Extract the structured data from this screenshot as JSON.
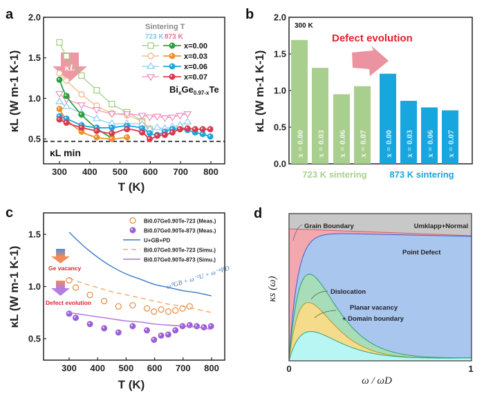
{
  "chart_data": [
    {
      "panel": "a",
      "type": "line",
      "xlabel": "T (K)",
      "ylabel": "κL (W m-1 K-1)",
      "xlim": [
        250,
        850
      ],
      "ylim": [
        0.2,
        2.0
      ],
      "xticks": [
        "300",
        "400",
        "500",
        "600",
        "700",
        "800"
      ],
      "yticks": [
        "0.5",
        "1.0",
        "1.5",
        "2.0"
      ],
      "legend_title": "Sintering T",
      "legend_sub_723": "723 K",
      "legend_sub_873": "873 K",
      "legend_labels": [
        "x=0.00",
        "x=0.03",
        "x=0.06",
        "x=0.07"
      ],
      "formula": "BixGe0.97-xTe",
      "arrow_label": "κL",
      "kmin_label": "κL min",
      "kmin_value": 0.47,
      "series": [
        {
          "name": "723 K x=0.00",
          "marker": "square",
          "color": "#9ccc7f",
          "x": [
            300,
            323,
            373,
            423,
            473,
            523,
            573,
            598
          ],
          "y": [
            1.69,
            1.52,
            1.28,
            1.1,
            0.93,
            0.83,
            0.72,
            0.62
          ]
        },
        {
          "name": "723 K x=0.03",
          "marker": "circle-open",
          "color": "#f0b27a",
          "x": [
            300,
            323,
            373,
            423,
            473,
            523,
            573,
            598
          ],
          "y": [
            1.31,
            1.22,
            1.05,
            0.91,
            0.82,
            0.79,
            0.71,
            0.63
          ]
        },
        {
          "name": "723 K x=0.06",
          "marker": "triangle-up",
          "color": "#8ecbf0",
          "x": [
            300,
            323,
            373,
            423,
            473,
            523,
            573,
            598,
            623,
            648,
            673,
            698,
            723
          ],
          "y": [
            0.96,
            0.9,
            0.82,
            0.75,
            0.69,
            0.69,
            0.68,
            0.62,
            0.64,
            0.63,
            0.65,
            0.67,
            0.71
          ]
        },
        {
          "name": "723 K x=0.07",
          "marker": "triangle-down",
          "color": "#ec8fba",
          "x": [
            300,
            323,
            373,
            423,
            473,
            523,
            573,
            598,
            623,
            648,
            673,
            698,
            723
          ],
          "y": [
            1.06,
            0.99,
            0.92,
            0.86,
            0.81,
            0.81,
            0.79,
            0.77,
            0.78,
            0.76,
            0.77,
            0.79,
            0.81
          ]
        },
        {
          "name": "873 K x=0.00",
          "marker": "circle-filled",
          "color": "#2f9e3f",
          "x": [
            300,
            323,
            373,
            423,
            473
          ],
          "y": [
            1.23,
            1.03,
            0.8,
            0.63,
            0.51
          ]
        },
        {
          "name": "873 K x=0.03",
          "marker": "circle-filled",
          "color": "#f0902a",
          "x": [
            300,
            323,
            373,
            423,
            473,
            523
          ],
          "y": [
            0.87,
            0.74,
            0.59,
            0.52,
            0.5,
            0.52
          ]
        },
        {
          "name": "873 K x=0.06",
          "marker": "circle-filled",
          "color": "#1fa3dd",
          "x": [
            300,
            323,
            373,
            423,
            473,
            523,
            573,
            598,
            623,
            648,
            673,
            698,
            723,
            748,
            773,
            798
          ],
          "y": [
            0.78,
            0.75,
            0.67,
            0.64,
            0.64,
            0.66,
            0.63,
            0.57,
            0.55,
            0.59,
            0.62,
            0.62,
            0.61,
            0.58,
            0.56,
            0.53
          ]
        },
        {
          "name": "873 K x=0.07",
          "marker": "circle-filled",
          "color": "#d63a4f",
          "x": [
            300,
            323,
            373,
            423,
            473,
            523,
            573,
            598,
            623,
            648,
            673,
            698,
            723,
            748,
            773,
            798
          ],
          "y": [
            0.74,
            0.7,
            0.64,
            0.6,
            0.57,
            0.62,
            0.58,
            0.5,
            0.54,
            0.55,
            0.58,
            0.62,
            0.63,
            0.62,
            0.62,
            0.62
          ]
        }
      ]
    },
    {
      "panel": "b",
      "type": "bar",
      "xlabel": "",
      "ylabel": "κL (W m-1 K-1)",
      "ylim": [
        0.0,
        2.0
      ],
      "yticks": [
        "0.0",
        "0.5",
        "1.0",
        "1.5",
        "2.0"
      ],
      "annotation_temp": "300 K",
      "annotation_arrow": "Defect evolution",
      "group_labels": [
        "723 K sintering",
        "873 K sintering"
      ],
      "categories": [
        "x = 0.00",
        "x = 0.03",
        "x = 0.06",
        "x = 0.07",
        "x = 0.00",
        "x = 0.03",
        "x = 0.06",
        "x = 0.07"
      ],
      "values": [
        1.69,
        1.31,
        0.95,
        1.06,
        1.23,
        0.86,
        0.77,
        0.73
      ],
      "group_colors": [
        "#a9cf8e",
        "#17a6dd"
      ]
    },
    {
      "panel": "c",
      "type": "scatter",
      "xlabel": "T (K)",
      "ylabel": "κL (W m-1 K-1)",
      "xlim": [
        210,
        850
      ],
      "ylim": [
        0.3,
        1.75
      ],
      "xticks": [
        "300",
        "400",
        "500",
        "600",
        "700",
        "800"
      ],
      "yticks": [
        "0.5",
        "1.0",
        "1.5"
      ],
      "legend": [
        "Bi0.07Ge0.90Te-723 (Meas.)",
        "Bi0.07Ge0.90Te-873 (Meas.)",
        "U+GB+PD",
        "Bi0.07Ge0.90Te-723 (Simu.)",
        "Bi0.07Ge0.90Te-873 (Simu.)"
      ],
      "annot_ge_vacancy": "Ge vacancy",
      "annot_defect_evolution": "Defect evolution",
      "annot_formula": "ω⁰GB + ω⁻²U + ω⁻⁴PD",
      "series": [
        {
          "name": "Bi0.07Ge0.90Te-723 (Meas.)",
          "kind": "scatter-open",
          "color": "#e8883a",
          "x": [
            300,
            323,
            373,
            423,
            473,
            523,
            573,
            598,
            623,
            648,
            673,
            698,
            723
          ],
          "y": [
            1.06,
            0.99,
            0.92,
            0.86,
            0.81,
            0.82,
            0.79,
            0.76,
            0.78,
            0.76,
            0.77,
            0.79,
            0.81
          ]
        },
        {
          "name": "Bi0.07Ge0.90Te-873 (Meas.)",
          "kind": "scatter-filled",
          "color": "#9b5fd6",
          "x": [
            300,
            323,
            373,
            423,
            473,
            523,
            573,
            598,
            623,
            648,
            673,
            698,
            723,
            748,
            773,
            798
          ],
          "y": [
            0.74,
            0.7,
            0.64,
            0.6,
            0.56,
            0.62,
            0.58,
            0.49,
            0.53,
            0.54,
            0.58,
            0.62,
            0.63,
            0.62,
            0.61,
            0.62
          ]
        },
        {
          "name": "U+GB+PD",
          "kind": "line",
          "color": "#3a78c8",
          "x": [
            300,
            350,
            400,
            450,
            500,
            550,
            600,
            650,
            700,
            750,
            800
          ],
          "y": [
            1.52,
            1.39,
            1.28,
            1.19,
            1.12,
            1.07,
            1.02,
            0.99,
            0.96,
            0.94,
            0.91
          ]
        },
        {
          "name": "Bi0.07Ge0.90Te-723 (Simu.)",
          "kind": "dashed",
          "color": "#f2a66a",
          "x": [
            300,
            350,
            400,
            450,
            500,
            550,
            600,
            650,
            700,
            750,
            800
          ],
          "y": [
            1.08,
            1.03,
            0.99,
            0.95,
            0.92,
            0.89,
            0.86,
            0.83,
            0.81,
            0.78,
            0.75
          ]
        },
        {
          "name": "Bi0.07Ge0.90Te-873 (Simu.)",
          "kind": "line",
          "color": "#b36fd8",
          "x": [
            300,
            350,
            400,
            450,
            500,
            550,
            600,
            650,
            700,
            750,
            800
          ],
          "y": [
            0.75,
            0.73,
            0.71,
            0.69,
            0.67,
            0.66,
            0.64,
            0.63,
            0.62,
            0.61,
            0.59
          ]
        }
      ]
    },
    {
      "panel": "d",
      "type": "area",
      "xlabel": "ω / ωD",
      "ylabel": "κs (ω)",
      "xlim": [
        0,
        1
      ],
      "xticks": [
        "0",
        "1"
      ],
      "labels": {
        "grain_boundary": "Grain Boundary",
        "umklapp": "Umklapp+Normal",
        "point_defect": "Point Defect",
        "dislocation": "Dislocation",
        "planar1": "Planar vacancy",
        "planar2": "+ Domain boundary"
      },
      "colors": {
        "umklapp": "#c8c8c8",
        "grain_boundary": "#f3a8b0",
        "point_defect": "#a9c6ef",
        "dislocation": "#a7ddb8",
        "planar": "#f5dc8a",
        "base": "#b8f6f4"
      }
    }
  ],
  "panels": {
    "a": "a",
    "b": "b",
    "c": "c",
    "d": "d"
  }
}
